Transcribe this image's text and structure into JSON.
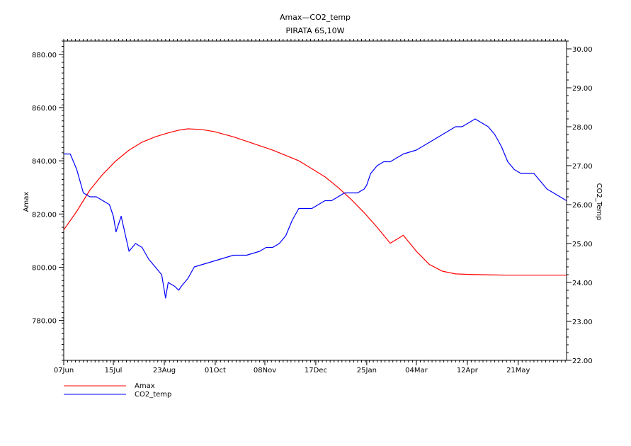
{
  "chart_data": {
    "type": "line",
    "title": "Amax—CO2_temp",
    "subtitle": "PIRATA 6S,10W",
    "xlabel": "",
    "ylabel_left": "Amax",
    "ylabel_right": "CO2_Temp",
    "x_tick_labels": [
      "07Jun",
      "15Jul",
      "23Aug",
      "01Oct",
      "08Nov",
      "17Dec",
      "25Jan",
      "04Mar",
      "12Apr",
      "21May"
    ],
    "x_tick_days": [
      0,
      38,
      77,
      116,
      154,
      193,
      232,
      270,
      309,
      348
    ],
    "xlim_days": [
      0,
      385
    ],
    "ylim_left": [
      765,
      885
    ],
    "ylim_right": [
      22.0,
      30.2
    ],
    "y_left_ticks": [
      {
        "value": 780,
        "label": "780.00"
      },
      {
        "value": 800,
        "label": "800.00"
      },
      {
        "value": 820,
        "label": "820.00"
      },
      {
        "value": 840,
        "label": "840.00"
      },
      {
        "value": 860,
        "label": "860.00"
      },
      {
        "value": 880,
        "label": "880.00"
      }
    ],
    "y_right_ticks": [
      {
        "value": 22,
        "label": "22.00"
      },
      {
        "value": 23,
        "label": "23.00"
      },
      {
        "value": 24,
        "label": "24.00"
      },
      {
        "value": 25,
        "label": "25.00"
      },
      {
        "value": 26,
        "label": "26.00"
      },
      {
        "value": 27,
        "label": "27.00"
      },
      {
        "value": 28,
        "label": "28.00"
      },
      {
        "value": 29,
        "label": "29.00"
      },
      {
        "value": 30,
        "label": "30.00"
      }
    ],
    "series": [
      {
        "name": "Amax",
        "axis": "left",
        "color": "#ff0000",
        "x_days": [
          0,
          10,
          20,
          30,
          40,
          50,
          60,
          70,
          80,
          88,
          95,
          105,
          115,
          130,
          145,
          160,
          170,
          180,
          190,
          200,
          210,
          220,
          230,
          240,
          250,
          260,
          270,
          280,
          290,
          300,
          310,
          320,
          330,
          340,
          350,
          360,
          370,
          380,
          385
        ],
        "values": [
          814,
          821,
          829,
          835,
          840,
          844,
          847,
          849,
          850.5,
          851.5,
          852,
          851.8,
          851,
          849,
          846.5,
          844,
          842,
          840,
          837,
          834,
          830,
          825.5,
          820.5,
          815,
          809,
          812,
          806,
          801,
          798.5,
          797.5,
          797.3,
          797.2,
          797.1,
          797.0,
          797.0,
          797.0,
          797.0,
          797.0,
          797.0
        ]
      },
      {
        "name": "CO2_temp",
        "axis": "right",
        "color": "#0000ff",
        "x_days": [
          0,
          5,
          10,
          15,
          20,
          25,
          30,
          35,
          38,
          40,
          44,
          48,
          50,
          55,
          60,
          65,
          70,
          75,
          78,
          80,
          85,
          88,
          90,
          95,
          100,
          110,
          120,
          130,
          140,
          150,
          155,
          160,
          165,
          170,
          175,
          180,
          185,
          190,
          195,
          200,
          205,
          210,
          215,
          220,
          225,
          230,
          232,
          235,
          240,
          245,
          250,
          260,
          270,
          280,
          290,
          300,
          305,
          310,
          315,
          320,
          325,
          330,
          335,
          340,
          345,
          350,
          355,
          360,
          365,
          370,
          375,
          380,
          385
        ],
        "values": [
          27.3,
          27.3,
          26.9,
          26.3,
          26.2,
          26.2,
          26.1,
          26.0,
          25.7,
          25.3,
          25.7,
          25.1,
          24.8,
          25.0,
          24.9,
          24.6,
          24.4,
          24.2,
          23.6,
          24.0,
          23.9,
          23.8,
          23.9,
          24.1,
          24.4,
          24.5,
          24.6,
          24.7,
          24.7,
          24.8,
          24.9,
          24.9,
          25.0,
          25.2,
          25.6,
          25.9,
          25.9,
          25.9,
          26.0,
          26.1,
          26.1,
          26.2,
          26.3,
          26.3,
          26.3,
          26.4,
          26.5,
          26.8,
          27.0,
          27.1,
          27.1,
          27.3,
          27.4,
          27.6,
          27.8,
          28.0,
          28.0,
          28.1,
          28.2,
          28.1,
          28.0,
          27.8,
          27.5,
          27.1,
          26.9,
          26.8,
          26.8,
          26.8,
          26.6,
          26.4,
          26.3,
          26.2,
          26.1
        ]
      }
    ],
    "legend": {
      "placement": "bottom-left"
    },
    "grid": false
  }
}
